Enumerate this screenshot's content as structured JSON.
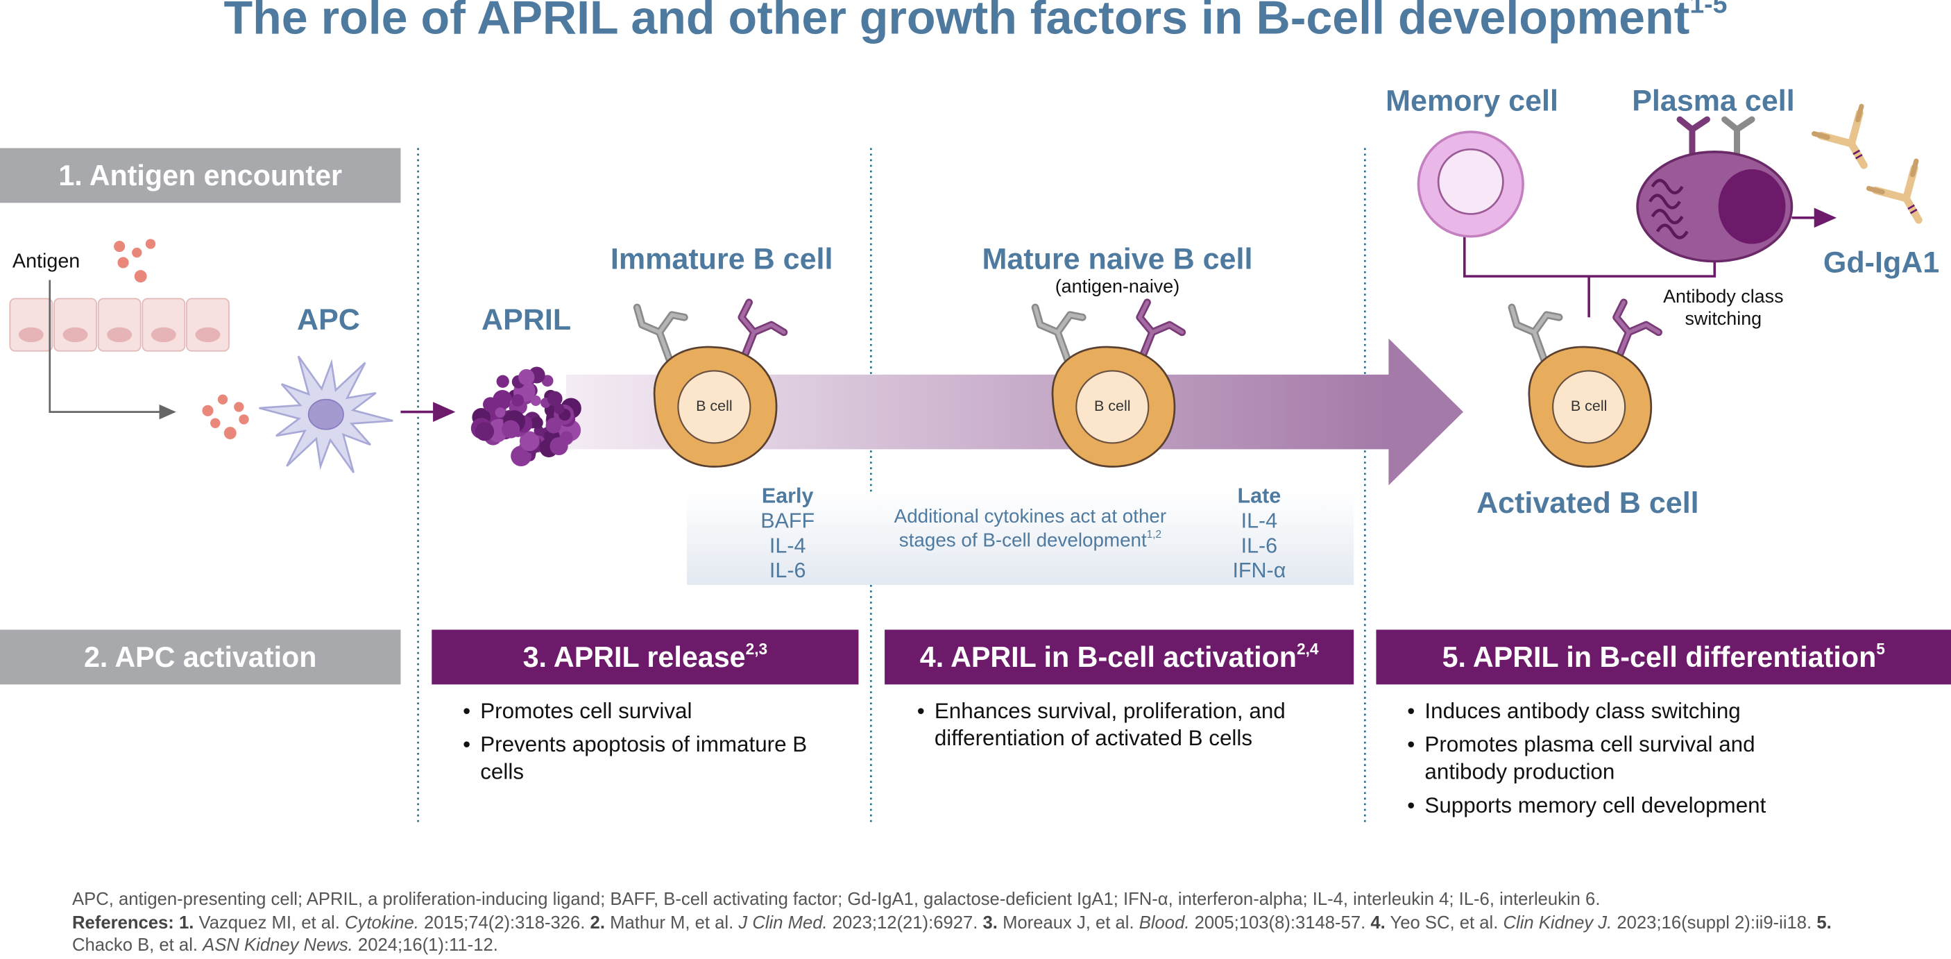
{
  "title": {
    "text": "The role of APRIL and other growth factors in B-cell development",
    "sup": "1-5"
  },
  "steps": [
    {
      "label": "1. Antigen encounter"
    },
    {
      "label": "2. APC activation"
    },
    {
      "label": "3. APRIL release",
      "sup": "2,3",
      "bullets": [
        "Promotes cell survival",
        "Prevents apoptosis of immature B cells"
      ]
    },
    {
      "label": "4. APRIL in B-cell activation",
      "sup": "2,4",
      "bullets": [
        "Enhances survival, proliferation, and differentiation of activated B cells"
      ]
    },
    {
      "label": "5. APRIL in B-cell differentiation",
      "sup": "5",
      "bullets": [
        "Induces antibody class switching",
        "Promotes plasma cell survival and antibody production",
        "Supports memory cell development"
      ]
    }
  ],
  "labels": {
    "antigen": "Antigen",
    "apc": "APC",
    "april": "APRIL",
    "immature": "Immature B cell",
    "mature": "Mature naive B cell",
    "mature_note": "(antigen-naive)",
    "activated": "Activated B cell",
    "memory": "Memory cell",
    "plasma": "Plasma cell",
    "gd_iga1": "Gd-IgA1",
    "switching": [
      "Antibody class",
      "switching"
    ],
    "b_cell": "B cell"
  },
  "cytokines": {
    "early": {
      "heading": "Early",
      "items": [
        "BAFF",
        "IL-4",
        "IL-6"
      ]
    },
    "late": {
      "heading": "Late",
      "items": [
        "IL-4",
        "IL-6",
        "IFN-α"
      ]
    },
    "note": {
      "lines": [
        "Additional cytokines act at other",
        "stages of B-cell development"
      ],
      "sup": "1,2"
    }
  },
  "footnote": "APC, antigen-presenting cell; APRIL, a proliferation-inducing ligand; BAFF, B-cell activating factor; Gd-IgA1, galactose-deficient IgA1; IFN-α, interferon-alpha; IL-4, interleukin 4; IL-6, interleukin 6.",
  "references": {
    "heading": "References:",
    "items": [
      {
        "num": "1.",
        "authors": "Vazquez MI, et al.",
        "journal": "Cytokine.",
        "detail": "2015;74(2):318-326."
      },
      {
        "num": "2.",
        "authors": "Mathur M, et al.",
        "journal": "J Clin Med.",
        "detail": "2023;12(21):6927."
      },
      {
        "num": "3.",
        "authors": "Moreaux J, et al.",
        "journal": "Blood.",
        "detail": "2005;103(8):3148-57."
      },
      {
        "num": "4.",
        "authors": "Yeo SC, et al.",
        "journal": "Clin Kidney J.",
        "detail": "2023;16(suppl 2):ii9-ii18."
      },
      {
        "num": "5.",
        "authors": "Chacko B, et al.",
        "journal": "ASN Kidney News.",
        "detail": "2024;16(1):11-12."
      }
    ]
  }
}
